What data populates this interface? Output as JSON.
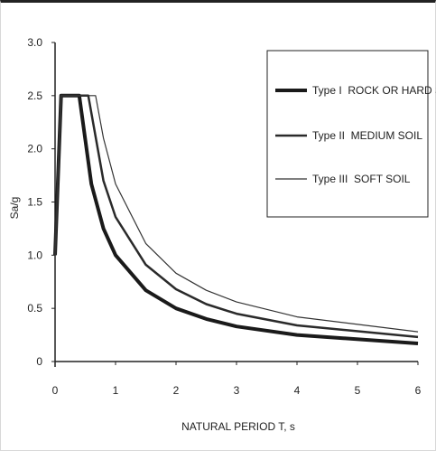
{
  "chart_data": {
    "type": "line",
    "title": "",
    "xlabel": "NATURAL PERIOD T, s",
    "ylabel": "Sa/g",
    "xlim": [
      0,
      6
    ],
    "ylim": [
      0,
      3.0
    ],
    "x_ticks": [
      "0",
      "1",
      "2",
      "3",
      "4",
      "5",
      "6"
    ],
    "y_ticks": [
      "0",
      "0.5",
      "1.0",
      "1.5",
      "2.0",
      "2.5",
      "3.0"
    ],
    "legend_position": "top-right",
    "grid": false,
    "series": [
      {
        "name": "Type I  ROCK OR HARD SOIL",
        "stroke_width": 4,
        "color": "#1a1a1a",
        "x": [
          0.0,
          0.1,
          0.4,
          0.6,
          0.8,
          1.0,
          1.5,
          2.0,
          2.5,
          3.0,
          4.0,
          6.0
        ],
        "y": [
          1.0,
          2.5,
          2.5,
          1.67,
          1.25,
          1.0,
          0.67,
          0.5,
          0.4,
          0.33,
          0.25,
          0.17
        ]
      },
      {
        "name": "Type II  MEDIUM SOIL",
        "stroke_width": 2.5,
        "color": "#2a2a2a",
        "x": [
          0.0,
          0.1,
          0.55,
          0.8,
          1.0,
          1.5,
          2.0,
          2.5,
          3.0,
          4.0,
          6.0
        ],
        "y": [
          1.0,
          2.5,
          2.5,
          1.7,
          1.36,
          0.91,
          0.68,
          0.54,
          0.45,
          0.34,
          0.23
        ]
      },
      {
        "name": "Type III  SOFT SOIL",
        "stroke_width": 1.2,
        "color": "#333333",
        "x": [
          0.0,
          0.1,
          0.67,
          0.8,
          1.0,
          1.5,
          2.0,
          2.5,
          3.0,
          4.0,
          6.0
        ],
        "y": [
          1.0,
          2.5,
          2.5,
          2.1,
          1.67,
          1.11,
          0.83,
          0.67,
          0.56,
          0.42,
          0.28
        ]
      }
    ]
  }
}
